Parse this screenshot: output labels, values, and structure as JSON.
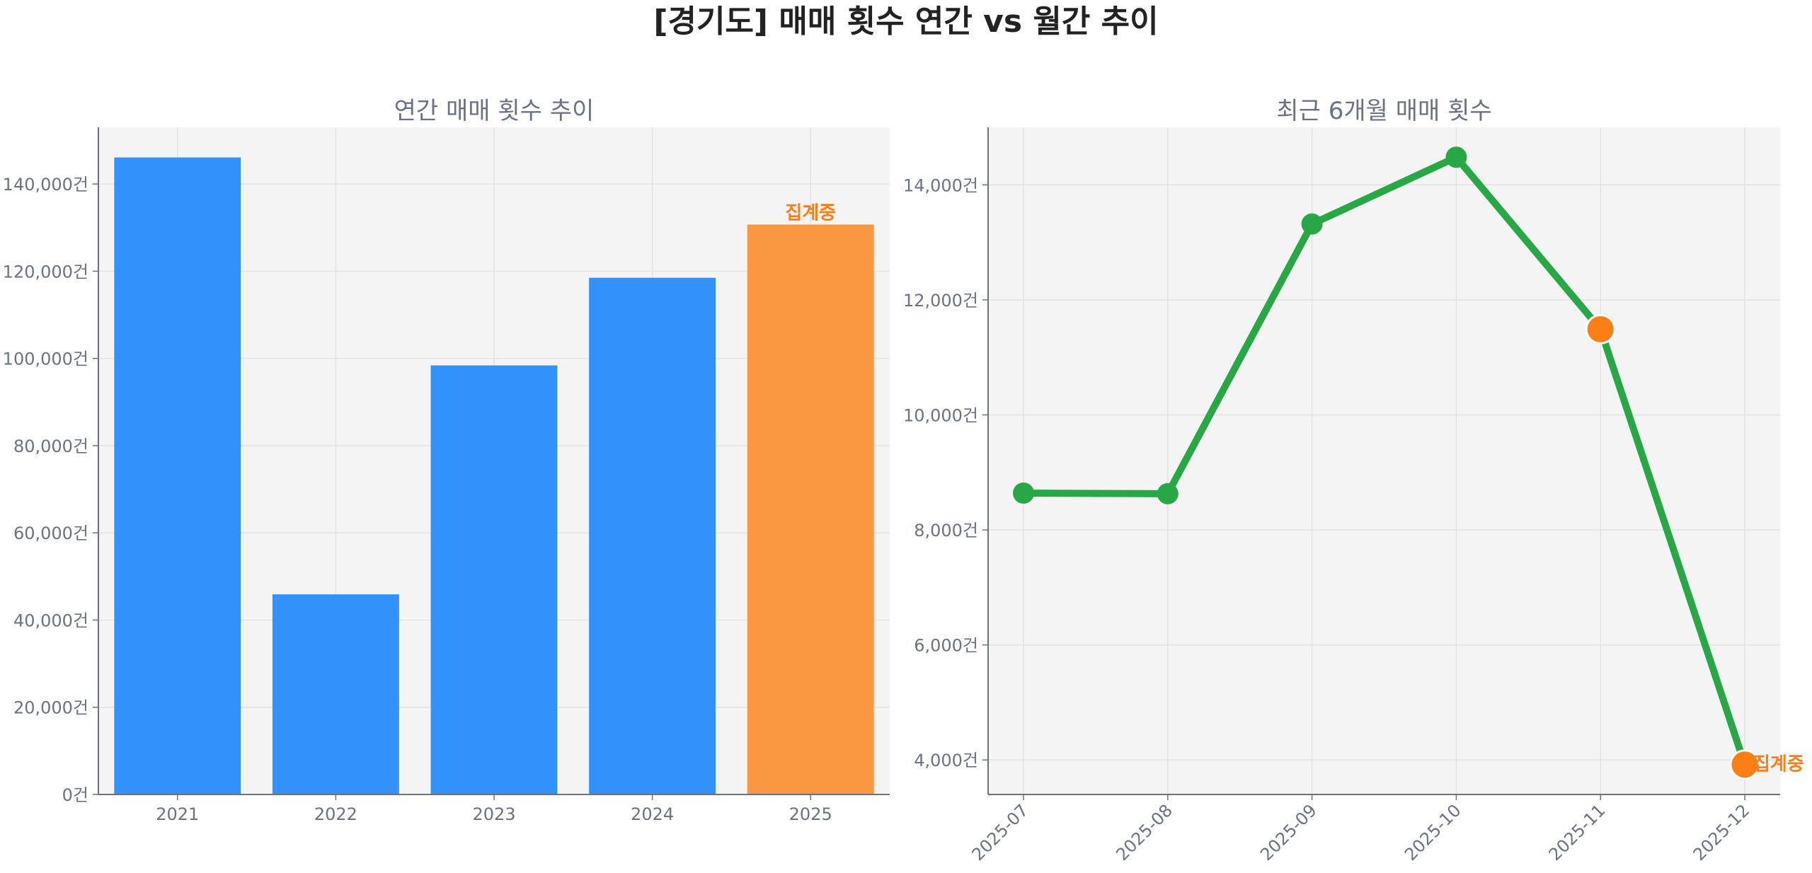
{
  "title": "[경기도] 매매 횟수 연간 vs 월간 추이",
  "colors": {
    "bar": "#3192fb",
    "partial": "#f9963f",
    "line": "#28a745",
    "partial_marker": "#fd7e14",
    "annotation": "#fd7e14"
  },
  "chart_data": [
    {
      "type": "bar",
      "title": "연간 매매 횟수 추이",
      "categories": [
        "2021",
        "2022",
        "2023",
        "2024",
        "2025"
      ],
      "values": [
        146100,
        45900,
        98400,
        118500,
        130700
      ],
      "partial": [
        false,
        false,
        false,
        false,
        true
      ],
      "annotation": "집계중",
      "ylim": [
        0,
        153000
      ],
      "yticks": [
        0,
        20000,
        40000,
        60000,
        80000,
        100000,
        120000,
        140000
      ],
      "ytick_labels": [
        "0건",
        "20,000건",
        "40,000건",
        "60,000건",
        "80,000건",
        "100,000건",
        "120,000건",
        "140,000건"
      ],
      "grid": true
    },
    {
      "type": "line",
      "title": "최근 6개월 매매 횟수",
      "categories": [
        "2025-07",
        "2025-08",
        "2025-09",
        "2025-10",
        "2025-11",
        "2025-12"
      ],
      "values": [
        8640,
        8630,
        13320,
        14480,
        11490,
        3920
      ],
      "partial": [
        false,
        false,
        false,
        false,
        true,
        true
      ],
      "annotation": "집계중",
      "ylim": [
        3400,
        15000
      ],
      "yticks": [
        4000,
        6000,
        8000,
        10000,
        12000,
        14000
      ],
      "ytick_labels": [
        "4,000건",
        "6,000건",
        "8,000건",
        "10,000건",
        "12,000건",
        "14,000건"
      ],
      "grid": true
    }
  ]
}
